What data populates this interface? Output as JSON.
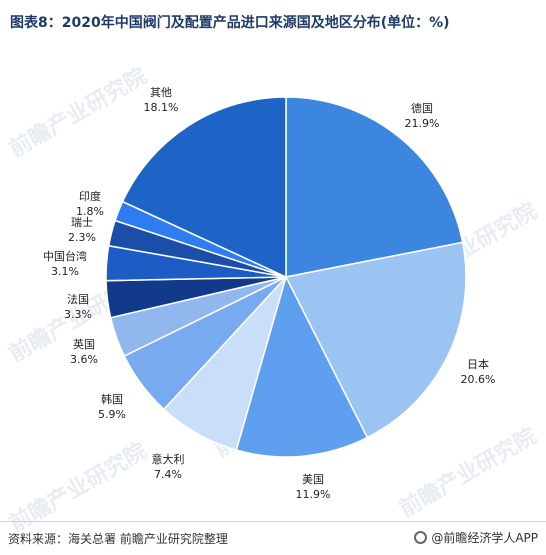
{
  "title": "图表8：2020年中国阀门及配置产品进口来源国及地区分布(单位：%)",
  "source": "资料来源：海关总署 前瞻产业研究院整理",
  "brand": "@前瞻经济学人APP",
  "watermark": "前瞻产业研究院",
  "chart_data": {
    "type": "pie",
    "title": "图表8：2020年中国阀门及配置产品进口来源国及地区分布(单位：%)",
    "unit": "%",
    "slices": [
      {
        "label": "德国",
        "value": 21.9,
        "display": "21.9%",
        "color": "#3d86e0"
      },
      {
        "label": "日本",
        "value": 20.6,
        "display": "20.6%",
        "color": "#9cc4f3"
      },
      {
        "label": "美国",
        "value": 11.9,
        "display": "11.9%",
        "color": "#5e9ff0"
      },
      {
        "label": "意大利",
        "value": 7.4,
        "display": "7.4%",
        "color": "#c9def8"
      },
      {
        "label": "韩国",
        "value": 5.9,
        "display": "5.9%",
        "color": "#78aaf0"
      },
      {
        "label": "英国",
        "value": 3.6,
        "display": "3.6%",
        "color": "#90b8ef"
      },
      {
        "label": "法国",
        "value": 3.3,
        "display": "3.3%",
        "color": "#123a8a"
      },
      {
        "label": "中国台湾",
        "value": 3.1,
        "display": "3.1%",
        "color": "#1d5cc4"
      },
      {
        "label": "瑞士",
        "value": 2.3,
        "display": "2.3%",
        "color": "#1a4ea8"
      },
      {
        "label": "印度",
        "value": 1.8,
        "display": "1.8%",
        "color": "#2e7cf0"
      },
      {
        "label": "其他",
        "value": 18.1,
        "display": "18.1%",
        "color": "#1e63c6"
      }
    ]
  }
}
